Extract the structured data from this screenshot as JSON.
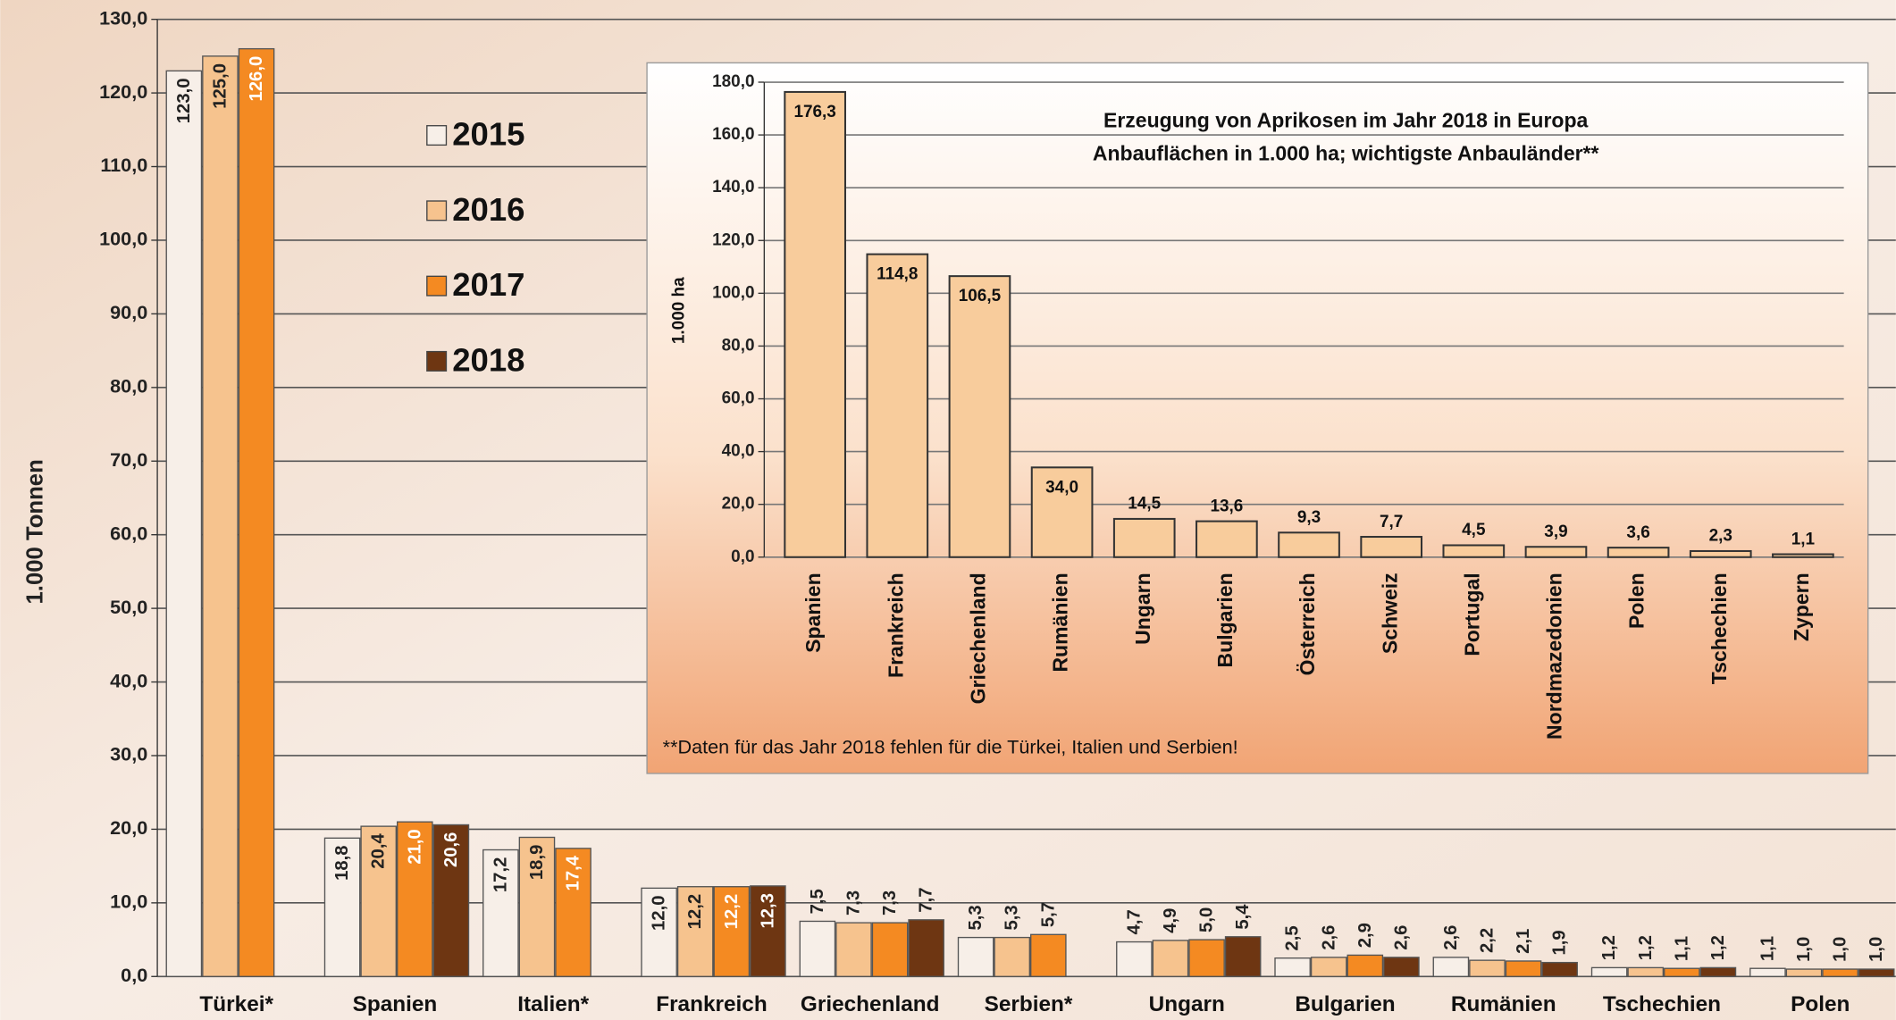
{
  "chart_data": [
    {
      "type": "bar",
      "ylabel": "1.000 Tonnen",
      "categories": [
        "Türkei*",
        "Spanien",
        "Italien*",
        "Frankreich",
        "Griechenland",
        "Serbien*",
        "Ungarn",
        "Bulgarien",
        "Rumänien",
        "Tschechien",
        "Polen"
      ],
      "series": [
        {
          "name": "2015",
          "color": "#f7efe8",
          "values": [
            123.0,
            18.8,
            17.2,
            12.0,
            7.5,
            5.3,
            4.7,
            2.5,
            2.6,
            1.2,
            1.1
          ],
          "value_labels": [
            "123,0",
            "18,8",
            "17,2",
            "12,0",
            "7,5",
            "5,3",
            "4,7",
            "2,5",
            "2,6",
            "1,2",
            "1,1"
          ]
        },
        {
          "name": "2016",
          "color": "#f6c38e",
          "values": [
            125.0,
            20.4,
            18.9,
            12.2,
            7.3,
            5.3,
            4.9,
            2.6,
            2.2,
            1.2,
            1.0
          ],
          "value_labels": [
            "125,0",
            "20,4",
            "18,9",
            "12,2",
            "7,3",
            "5,3",
            "4,9",
            "2,6",
            "2,2",
            "1,2",
            "1,0"
          ]
        },
        {
          "name": "2017",
          "color": "#f48a22",
          "values": [
            126.0,
            21.0,
            17.4,
            12.2,
            7.3,
            5.7,
            5.0,
            2.9,
            2.1,
            1.1,
            1.0
          ],
          "value_labels": [
            "126,0",
            "21,0",
            "17,4",
            "12,2",
            "7,3",
            "5,7",
            "5,0",
            "2,9",
            "2,1",
            "1,1",
            "1,0"
          ]
        },
        {
          "name": "2018",
          "color": "#6e3612",
          "values": [
            null,
            20.6,
            null,
            12.3,
            7.7,
            null,
            5.4,
            2.6,
            1.9,
            1.2,
            1.0
          ],
          "value_labels": [
            null,
            "20,6",
            null,
            "12,3",
            "7,7",
            null,
            "5,4",
            "2,6",
            "1,9",
            "1,2",
            "1,0"
          ]
        }
      ],
      "ylim": [
        0,
        130
      ],
      "yticks": [
        {
          "value": 0,
          "label": "0,0"
        },
        {
          "value": 10,
          "label": "10,0"
        },
        {
          "value": 20,
          "label": "20,0"
        },
        {
          "value": 30,
          "label": "30,0"
        },
        {
          "value": 40,
          "label": "40,0"
        },
        {
          "value": 50,
          "label": "50,0"
        },
        {
          "value": 60,
          "label": "60,0"
        },
        {
          "value": 70,
          "label": "70,0"
        },
        {
          "value": 80,
          "label": "80,0"
        },
        {
          "value": 90,
          "label": "90,0"
        },
        {
          "value": 100,
          "label": "100,0"
        },
        {
          "value": 110,
          "label": "110,0"
        },
        {
          "value": 120,
          "label": "120,0"
        },
        {
          "value": 130,
          "label": "130,0"
        }
      ],
      "grid": true
    },
    {
      "type": "bar",
      "title": "Erzeugung von Aprikosen im Jahr 2018 in Europa",
      "subtitle": "Anbauflächen in 1.000 ha; wichtigste Anbauländer**",
      "ylabel": "1.000 ha",
      "annotation": "**Daten für das Jahr 2018 fehlen für die Türkei, Italien und Serbien!",
      "categories": [
        "Spanien",
        "Frankreich",
        "Griechenland",
        "Rumänien",
        "Ungarn",
        "Bulgarien",
        "Österreich",
        "Schweiz",
        "Portugal",
        "Nordmazedonien",
        "Polen",
        "Tschechien",
        "Zypern"
      ],
      "values": [
        176.3,
        114.8,
        106.5,
        34.0,
        14.5,
        13.6,
        9.3,
        7.7,
        4.5,
        3.9,
        3.6,
        2.3,
        1.1
      ],
      "value_labels": [
        "176,3",
        "114,8",
        "106,5",
        "34,0",
        "14,5",
        "13,6",
        "9,3",
        "7,7",
        "4,5",
        "3,9",
        "3,6",
        "2,3",
        "1,1"
      ],
      "color": "#f8cc9c",
      "ylim": [
        0,
        180
      ],
      "yticks": [
        {
          "value": 0,
          "label": "0,0"
        },
        {
          "value": 20,
          "label": "20,0"
        },
        {
          "value": 40,
          "label": "40,0"
        },
        {
          "value": 60,
          "label": "60,0"
        },
        {
          "value": 80,
          "label": "80,0"
        },
        {
          "value": 100,
          "label": "100,0"
        },
        {
          "value": 120,
          "label": "120,0"
        },
        {
          "value": 140,
          "label": "140,0"
        },
        {
          "value": 160,
          "label": "160,0"
        },
        {
          "value": 180,
          "label": "180,0"
        }
      ],
      "grid": true
    }
  ]
}
